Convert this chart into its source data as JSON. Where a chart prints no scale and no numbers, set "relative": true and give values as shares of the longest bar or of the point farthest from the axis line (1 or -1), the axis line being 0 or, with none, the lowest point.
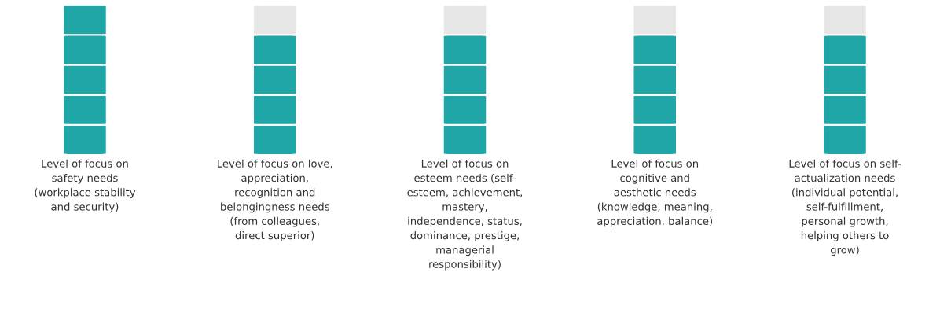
{
  "chart_data": {
    "type": "bar",
    "stacked": true,
    "relative": true,
    "categories": [
      "Level of focus on\nsafety needs\n(workplace stability\nand security)",
      "Level of focus on love,\nappreciation,\nrecognition and\nbelongingness needs\n(from colleagues,\ndirect superior)",
      "Level of focus on\nesteem needs (self-\nesteem, achievement,\nmastery,\nindependence, status,\ndominance, prestige,\nmanagerial\nresponsibility)",
      "Level of focus on\ncognitive and\naesthetic needs\n(knowledge, meaning,\nappreciation, balance)",
      "Level of focus on self-\nactualization needs\n(individual potential,\nself-fulfillment,\npersonal growth,\nhelping others to\ngrow)"
    ],
    "series": [
      {
        "colors": [
          "#20a6a6",
          "#20a6a6",
          "#20a6a6",
          "#20a6a6",
          "#20a6a6"
        ],
        "values": [
          0.2,
          0.2,
          0.2,
          0.2,
          0.2
        ]
      },
      {
        "colors": [
          "#20a6a6",
          "#20a6a6",
          "#20a6a6",
          "#20a6a6",
          "#20a6a6"
        ],
        "values": [
          0.2,
          0.2,
          0.2,
          0.2,
          0.2
        ]
      },
      {
        "colors": [
          "#20a6a6",
          "#20a6a6",
          "#20a6a6",
          "#20a6a6",
          "#20a6a6"
        ],
        "values": [
          0.2,
          0.2,
          0.2,
          0.2,
          0.2
        ]
      },
      {
        "colors": [
          "#20a6a6",
          "#20a6a6",
          "#20a6a6",
          "#20a6a6",
          "#20a6a6"
        ],
        "values": [
          0.2,
          0.2,
          0.2,
          0.2,
          0.2
        ]
      },
      {
        "colors": [
          "#20a6a6",
          "#e6e6e6",
          "#e6e6e6",
          "#e6e6e6",
          "#e6e6e6"
        ],
        "values": [
          0.2,
          0.2,
          0.2,
          0.2,
          0.2
        ]
      }
    ]
  }
}
